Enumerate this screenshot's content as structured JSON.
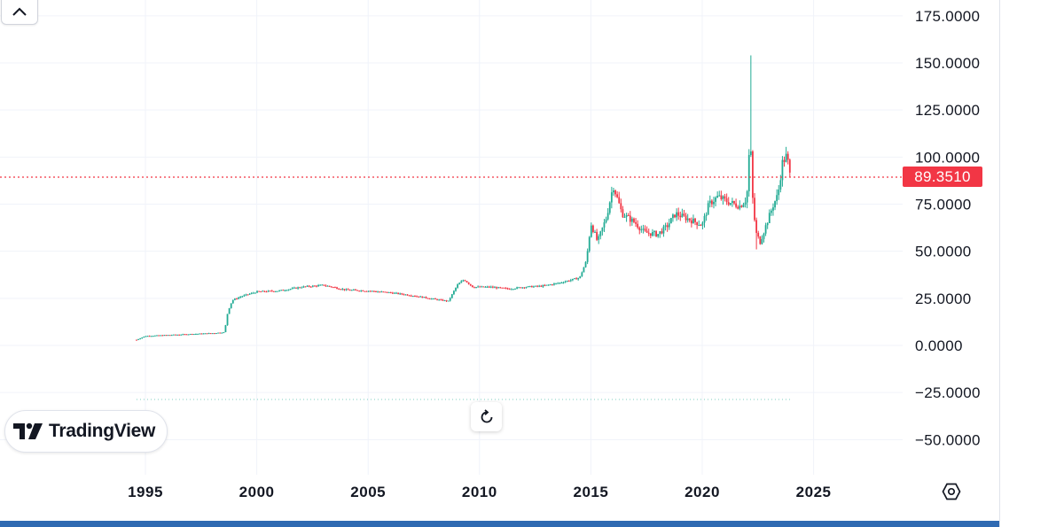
{
  "chart_data": {
    "type": "candlestick",
    "brand": "TradingView",
    "last_price_label": "89.3510",
    "last_price": 89.351,
    "y_axis": {
      "ticks": [
        {
          "value": 175,
          "label": "175.0000"
        },
        {
          "value": 150,
          "label": "150.0000"
        },
        {
          "value": 125,
          "label": "125.0000"
        },
        {
          "value": 100,
          "label": "100.0000"
        },
        {
          "value": 75,
          "label": "75.0000"
        },
        {
          "value": 50,
          "label": "50.0000"
        },
        {
          "value": 25,
          "label": "25.0000"
        },
        {
          "value": 0,
          "label": "0.0000"
        },
        {
          "value": -25,
          "label": "−25.0000"
        },
        {
          "value": -50,
          "label": "−50.0000"
        }
      ],
      "range": [
        -55,
        182
      ]
    },
    "x_axis": {
      "ticks": [
        {
          "year": 1995,
          "label": "1995"
        },
        {
          "year": 2000,
          "label": "2000"
        },
        {
          "year": 2005,
          "label": "2005"
        },
        {
          "year": 2010,
          "label": "2010"
        },
        {
          "year": 2015,
          "label": "2015"
        },
        {
          "year": 2020,
          "label": "2020"
        },
        {
          "year": 2025,
          "label": "2025"
        }
      ],
      "range": [
        1989.0,
        2034.0
      ]
    },
    "series_anchor_points": [
      [
        1994.6,
        3.0
      ],
      [
        1995.0,
        5.0
      ],
      [
        1996.0,
        5.5
      ],
      [
        1997.0,
        6.0
      ],
      [
        1998.0,
        6.5
      ],
      [
        1998.55,
        7.0
      ],
      [
        1998.7,
        18.0
      ],
      [
        1998.9,
        24.0
      ],
      [
        1999.3,
        26.0
      ],
      [
        2000.0,
        28.5
      ],
      [
        2001.0,
        29.0
      ],
      [
        2002.0,
        31.0
      ],
      [
        2003.0,
        32.0
      ],
      [
        2004.0,
        29.5
      ],
      [
        2005.0,
        29.0
      ],
      [
        2006.0,
        28.0
      ],
      [
        2007.0,
        26.5
      ],
      [
        2008.0,
        24.5
      ],
      [
        2008.6,
        23.5
      ],
      [
        2009.0,
        32.0
      ],
      [
        2009.3,
        35.0
      ],
      [
        2009.7,
        31.0
      ],
      [
        2010.5,
        31.0
      ],
      [
        2011.3,
        30.0
      ],
      [
        2012.0,
        31.0
      ],
      [
        2012.8,
        31.5
      ],
      [
        2013.5,
        33.0
      ],
      [
        2014.2,
        35.0
      ],
      [
        2014.5,
        36.0
      ],
      [
        2014.8,
        45.0
      ],
      [
        2015.0,
        65.0
      ],
      [
        2015.3,
        55.0
      ],
      [
        2015.7,
        68.0
      ],
      [
        2016.0,
        85.0
      ],
      [
        2016.4,
        70.0
      ],
      [
        2017.0,
        65.0
      ],
      [
        2017.4,
        60.0
      ],
      [
        2018.0,
        59.0
      ],
      [
        2018.4,
        63.0
      ],
      [
        2018.8,
        70.0
      ],
      [
        2019.4,
        67.0
      ],
      [
        2020.0,
        64.0
      ],
      [
        2020.3,
        75.0
      ],
      [
        2020.7,
        79.0
      ],
      [
        2021.2,
        76.0
      ],
      [
        2021.7,
        74.0
      ],
      [
        2022.0,
        78.0
      ],
      [
        2022.15,
        112.0
      ],
      [
        2022.25,
        80.0
      ],
      [
        2022.4,
        60.0
      ],
      [
        2022.6,
        55.0
      ],
      [
        2022.9,
        65.0
      ],
      [
        2023.2,
        75.0
      ],
      [
        2023.4,
        80.0
      ],
      [
        2023.6,
        97.0
      ],
      [
        2023.8,
        101.0
      ],
      [
        2023.95,
        89.351
      ]
    ],
    "notable_high": {
      "x": 2022.2,
      "value": 154.0
    },
    "notable_low": {
      "x": 2022.4,
      "value": 51.0
    },
    "colors": {
      "up": "#22ab94",
      "down": "#f23645",
      "grid": "#f0f3fa",
      "text": "#131722",
      "price_line": "#f23645",
      "accent_bar": "#2f6ab2"
    }
  }
}
